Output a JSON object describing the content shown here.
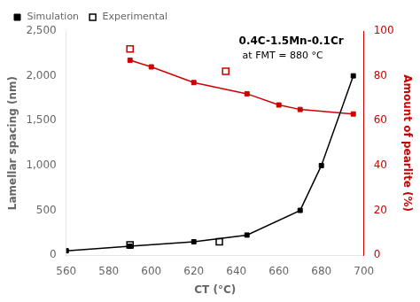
{
  "chart_data": {
    "type": "line",
    "annotations": [
      "0.4C-1.5Mn-0.1Cr",
      "at FMT = 880 °C"
    ],
    "xlabel": "CT (°C)",
    "ylabel": "Lamellar spacing (nm)",
    "y2label": "Amount of pearlite (%)",
    "xlim": [
      560,
      700
    ],
    "xticks": [
      560,
      580,
      600,
      620,
      640,
      660,
      680,
      700
    ],
    "ylim": [
      0,
      2500
    ],
    "yticks": [
      0,
      500,
      1000,
      1500,
      2000,
      2500
    ],
    "y2lim": [
      0,
      100
    ],
    "y2ticks": [
      0,
      20,
      40,
      60,
      80,
      100
    ],
    "grid": false,
    "legend": "upper left",
    "series": [
      {
        "name": "Simulation",
        "color": "#000000",
        "marker": "square",
        "line_style": "solid",
        "x": [
          560,
          590,
          620,
          645,
          670,
          680,
          695
        ],
        "values": [
          50,
          100,
          150,
          225,
          500,
          1000,
          2000
        ]
      },
      {
        "name": "Experimental",
        "color": "#000000",
        "marker": "open_square",
        "line_style": "none",
        "x": [
          590,
          632
        ],
        "values": [
          115,
          150
        ]
      },
      {
        "name": "Simulation",
        "color": "#cc0000",
        "marker": "square",
        "line_style": "solid",
        "axis": "y2",
        "x": [
          590,
          600,
          620,
          645,
          660,
          670,
          695
        ],
        "values": [
          87,
          84,
          77,
          72,
          67,
          65,
          63
        ]
      },
      {
        "name": "Experimental",
        "color": "#cc0000",
        "marker": "open_square",
        "line_style": "none",
        "axis": "y2",
        "x": [
          590,
          635
        ],
        "values": [
          92,
          82
        ]
      }
    ]
  }
}
